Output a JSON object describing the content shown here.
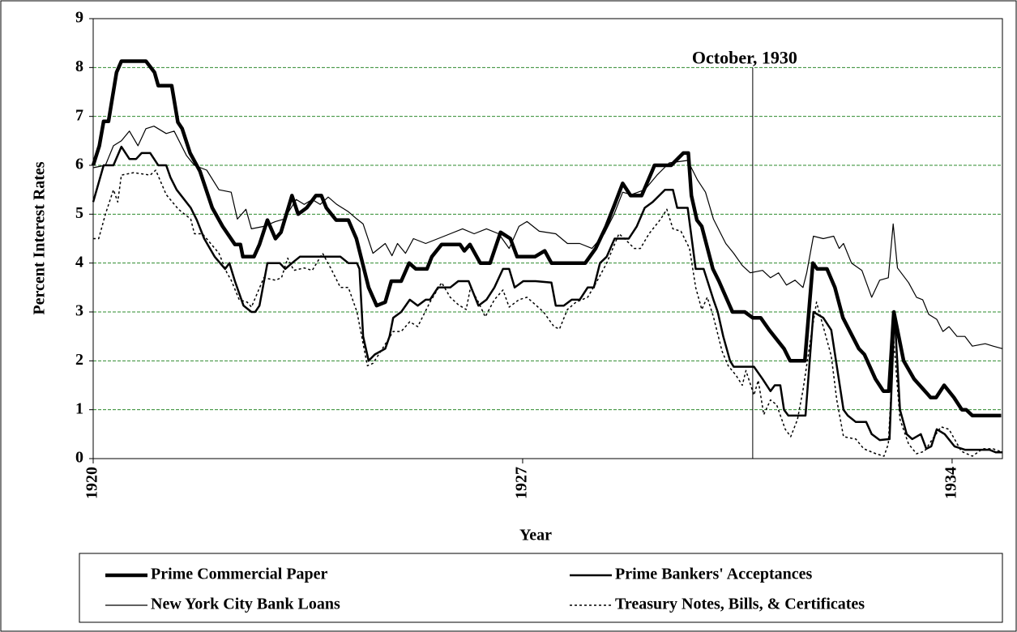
{
  "chart_data": {
    "type": "line",
    "xlabel": "Year",
    "ylabel": "Percent Interest Rates",
    "xlim": [
      1920,
      1934.82
    ],
    "xticks": [
      1920,
      1927,
      1934
    ],
    "ylim": [
      0,
      9
    ],
    "yticks": [
      0,
      1,
      2,
      3,
      4,
      5,
      6,
      7,
      8,
      9
    ],
    "grid": true,
    "grid_color": "#2e8b2e",
    "annotation": {
      "text": "October, 1930",
      "x": 1930.75,
      "y": 8
    },
    "series": [
      {
        "name": "Prime Commercial Paper",
        "color": "#000000",
        "line_width": 4.5,
        "dash": false,
        "x": [
          1920.0,
          1920.1,
          1920.17,
          1920.25,
          1920.38,
          1920.46,
          1920.86,
          1921.0,
          1921.06,
          1921.28,
          1921.38,
          1921.45,
          1921.58,
          1921.74,
          1921.94,
          1922.11,
          1922.31,
          1922.4,
          1922.44,
          1922.62,
          1922.71,
          1922.84,
          1922.97,
          1923.06,
          1923.24,
          1923.34,
          1923.48,
          1923.63,
          1923.72,
          1923.8,
          1923.96,
          1924.16,
          1924.29,
          1924.49,
          1924.62,
          1924.76,
          1924.86,
          1925.02,
          1925.15,
          1925.26,
          1925.44,
          1925.52,
          1925.68,
          1925.98,
          1926.05,
          1926.14,
          1926.31,
          1926.47,
          1926.64,
          1926.8,
          1926.91,
          1927.2,
          1927.36,
          1927.47,
          1928.02,
          1928.19,
          1928.36,
          1928.5,
          1928.63,
          1928.76,
          1928.94,
          1929.11,
          1929.15,
          1929.42,
          1929.62,
          1929.7,
          1929.75,
          1929.84,
          1929.92,
          1930.1,
          1930.2,
          1930.42,
          1930.62,
          1930.75,
          1930.88,
          1931.02,
          1931.26,
          1931.36,
          1931.6,
          1931.73,
          1931.8,
          1931.96,
          1932.09,
          1932.22,
          1932.48,
          1932.57,
          1932.75,
          1932.88,
          1932.97,
          1933.05,
          1933.21,
          1933.38,
          1933.65,
          1933.74,
          1933.87,
          1934.03,
          1934.16,
          1934.23,
          1934.33,
          1934.8
        ],
        "values": [
          6.0,
          6.4,
          6.9,
          6.9,
          7.9,
          8.13,
          8.13,
          7.9,
          7.63,
          7.63,
          6.88,
          6.75,
          6.25,
          5.88,
          5.13,
          4.75,
          4.38,
          4.38,
          4.13,
          4.13,
          4.38,
          4.88,
          4.5,
          4.63,
          5.38,
          5.0,
          5.13,
          5.38,
          5.38,
          5.13,
          4.88,
          4.88,
          4.5,
          3.5,
          3.13,
          3.2,
          3.63,
          3.63,
          4.0,
          3.88,
          3.88,
          4.13,
          4.38,
          4.38,
          4.25,
          4.38,
          4.0,
          4.0,
          4.63,
          4.5,
          4.13,
          4.13,
          4.25,
          4.0,
          4.0,
          4.3,
          4.75,
          5.2,
          5.63,
          5.38,
          5.38,
          5.88,
          6.0,
          6.0,
          6.25,
          6.25,
          5.38,
          4.88,
          4.75,
          3.88,
          3.63,
          3.0,
          3.0,
          2.88,
          2.88,
          2.63,
          2.25,
          2.0,
          2.0,
          4.0,
          3.88,
          3.88,
          3.5,
          2.88,
          2.25,
          2.13,
          1.63,
          1.38,
          1.38,
          3.0,
          2.0,
          1.63,
          1.25,
          1.25,
          1.5,
          1.25,
          1.0,
          1.0,
          0.88,
          0.88
        ]
      },
      {
        "name": "Prime Bankers' Acceptances",
        "color": "#000000",
        "line_width": 2.5,
        "dash": false,
        "x": [
          1920.0,
          1920.17,
          1920.33,
          1920.46,
          1920.59,
          1920.7,
          1920.79,
          1920.93,
          1921.06,
          1921.19,
          1921.26,
          1921.36,
          1921.59,
          1921.69,
          1921.81,
          1921.98,
          1922.15,
          1922.22,
          1922.31,
          1922.45,
          1922.58,
          1922.64,
          1922.71,
          1922.84,
          1923.04,
          1923.13,
          1923.24,
          1923.37,
          1924.03,
          1924.16,
          1924.3,
          1924.34,
          1924.4,
          1924.49,
          1924.59,
          1924.76,
          1924.83,
          1924.89,
          1925.02,
          1925.16,
          1925.29,
          1925.42,
          1925.49,
          1925.62,
          1925.82,
          1925.95,
          1926.12,
          1926.28,
          1926.41,
          1926.54,
          1926.68,
          1926.78,
          1926.87,
          1927.01,
          1927.21,
          1927.47,
          1927.54,
          1927.67,
          1927.8,
          1927.93,
          1928.06,
          1928.16,
          1928.26,
          1928.37,
          1928.5,
          1928.73,
          1928.86,
          1928.99,
          1929.12,
          1929.32,
          1929.45,
          1929.52,
          1929.69,
          1929.82,
          1929.95,
          1930.11,
          1930.18,
          1930.27,
          1930.38,
          1930.44,
          1930.77,
          1930.91,
          1931.04,
          1931.11,
          1931.2,
          1931.26,
          1931.33,
          1931.61,
          1931.74,
          1931.9,
          1932.03,
          1932.23,
          1932.3,
          1932.43,
          1932.6,
          1932.69,
          1932.82,
          1932.98,
          1933.06,
          1933.15,
          1933.26,
          1933.35,
          1933.49,
          1933.58,
          1933.66,
          1933.75,
          1933.88,
          1934.04,
          1934.21,
          1934.61,
          1934.71,
          1934.82
        ],
        "values": [
          5.25,
          6.0,
          6.0,
          6.38,
          6.13,
          6.13,
          6.25,
          6.25,
          6.0,
          6.0,
          5.75,
          5.5,
          5.13,
          4.88,
          4.5,
          4.13,
          3.88,
          4.0,
          3.63,
          3.13,
          3.0,
          3.0,
          3.13,
          4.0,
          4.0,
          3.88,
          4.0,
          4.13,
          4.13,
          4.0,
          4.0,
          3.88,
          2.5,
          2.0,
          2.13,
          2.25,
          2.5,
          2.88,
          3.0,
          3.25,
          3.13,
          3.25,
          3.25,
          3.5,
          3.5,
          3.63,
          3.63,
          3.13,
          3.25,
          3.5,
          3.88,
          3.88,
          3.5,
          3.63,
          3.63,
          3.6,
          3.13,
          3.13,
          3.25,
          3.25,
          3.5,
          3.5,
          4.0,
          4.13,
          4.5,
          4.5,
          4.75,
          5.13,
          5.25,
          5.5,
          5.5,
          5.13,
          5.13,
          3.88,
          3.88,
          3.25,
          3.0,
          2.5,
          2.0,
          1.88,
          1.88,
          1.63,
          1.38,
          1.5,
          1.5,
          1.0,
          0.88,
          0.88,
          3.0,
          2.88,
          2.63,
          1.0,
          0.88,
          0.75,
          0.75,
          0.5,
          0.38,
          0.4,
          3.0,
          1.0,
          0.5,
          0.4,
          0.5,
          0.2,
          0.25,
          0.6,
          0.5,
          0.25,
          0.18,
          0.18,
          0.13,
          0.13
        ]
      },
      {
        "name": "New York City Bank Loans",
        "color": "#000000",
        "line_width": 1.2,
        "dash": false,
        "x": [
          1920.0,
          1920.2,
          1920.33,
          1920.46,
          1920.59,
          1920.73,
          1920.86,
          1920.99,
          1921.19,
          1921.32,
          1921.52,
          1921.65,
          1921.85,
          1922.05,
          1922.25,
          1922.35,
          1922.49,
          1922.58,
          1922.78,
          1922.97,
          1923.11,
          1923.31,
          1923.44,
          1923.57,
          1923.7,
          1923.83,
          1923.97,
          1924.16,
          1924.3,
          1924.4,
          1924.56,
          1924.76,
          1924.87,
          1924.96,
          1925.09,
          1925.22,
          1925.42,
          1925.62,
          1925.82,
          1926.02,
          1926.21,
          1926.41,
          1926.61,
          1926.78,
          1926.94,
          1927.07,
          1927.27,
          1927.54,
          1927.73,
          1927.93,
          1928.13,
          1928.33,
          1928.49,
          1928.63,
          1928.77,
          1928.99,
          1929.19,
          1929.39,
          1929.69,
          1929.85,
          1929.98,
          1930.11,
          1930.31,
          1930.44,
          1930.58,
          1930.71,
          1930.91,
          1931.04,
          1931.17,
          1931.3,
          1931.44,
          1931.57,
          1931.63,
          1931.74,
          1931.9,
          1932.07,
          1932.16,
          1932.23,
          1932.36,
          1932.53,
          1932.69,
          1932.82,
          1932.96,
          1933.04,
          1933.11,
          1933.29,
          1933.42,
          1933.52,
          1933.62,
          1933.75,
          1933.85,
          1933.95,
          1934.08,
          1934.21,
          1934.33,
          1934.54,
          1934.67,
          1934.82
        ],
        "values": [
          5.95,
          6.0,
          6.4,
          6.5,
          6.7,
          6.4,
          6.75,
          6.8,
          6.65,
          6.7,
          6.2,
          6.0,
          5.9,
          5.5,
          5.45,
          4.9,
          5.1,
          4.7,
          4.75,
          4.85,
          4.9,
          5.3,
          5.2,
          5.3,
          5.2,
          5.35,
          5.2,
          5.05,
          4.9,
          4.8,
          4.2,
          4.4,
          4.15,
          4.4,
          4.2,
          4.5,
          4.4,
          4.5,
          4.6,
          4.7,
          4.6,
          4.7,
          4.6,
          4.3,
          4.75,
          4.85,
          4.65,
          4.6,
          4.4,
          4.4,
          4.3,
          4.6,
          5.0,
          5.45,
          5.4,
          5.5,
          5.8,
          6.05,
          6.1,
          5.7,
          5.45,
          4.9,
          4.4,
          4.2,
          3.95,
          3.8,
          3.85,
          3.7,
          3.8,
          3.55,
          3.65,
          3.5,
          3.8,
          4.55,
          4.5,
          4.55,
          4.3,
          4.4,
          4.0,
          3.85,
          3.3,
          3.65,
          3.7,
          4.8,
          3.9,
          3.6,
          3.3,
          3.25,
          2.95,
          2.85,
          2.6,
          2.7,
          2.5,
          2.5,
          2.3,
          2.35,
          2.3,
          2.25
        ]
      },
      {
        "name": "Treasury Notes, Bills, & Certificates",
        "color": "#000000",
        "line_width": 1.5,
        "dash": true,
        "x": [
          1920.0,
          1920.09,
          1920.2,
          1920.33,
          1920.4,
          1920.46,
          1920.66,
          1920.93,
          1921.02,
          1921.19,
          1921.39,
          1921.59,
          1921.65,
          1921.78,
          1922.05,
          1922.18,
          1922.25,
          1922.38,
          1922.51,
          1922.58,
          1922.78,
          1922.97,
          1923.07,
          1923.17,
          1923.27,
          1923.44,
          1923.57,
          1923.74,
          1923.87,
          1924.03,
          1924.16,
          1924.3,
          1924.47,
          1924.56,
          1924.69,
          1924.89,
          1925.02,
          1925.16,
          1925.29,
          1925.49,
          1925.68,
          1925.82,
          1925.95,
          1926.08,
          1926.15,
          1926.28,
          1926.39,
          1926.54,
          1926.68,
          1926.78,
          1926.94,
          1927.07,
          1927.34,
          1927.51,
          1927.6,
          1927.73,
          1927.87,
          1928.06,
          1928.2,
          1928.37,
          1928.57,
          1928.66,
          1928.82,
          1928.92,
          1929.06,
          1929.25,
          1929.35,
          1929.45,
          1929.58,
          1929.72,
          1929.82,
          1929.92,
          1930.01,
          1930.11,
          1930.25,
          1930.35,
          1930.48,
          1930.58,
          1930.64,
          1930.77,
          1930.84,
          1930.93,
          1931.04,
          1931.14,
          1931.28,
          1931.37,
          1931.48,
          1931.57,
          1931.7,
          1931.79,
          1931.9,
          1932.03,
          1932.12,
          1932.23,
          1932.43,
          1932.56,
          1932.76,
          1932.89,
          1932.96,
          1933.05,
          1933.15,
          1933.29,
          1933.42,
          1933.55,
          1933.68,
          1933.82,
          1933.95,
          1934.15,
          1934.33,
          1934.5,
          1934.67,
          1934.82
        ],
        "values": [
          4.5,
          4.5,
          5.0,
          5.5,
          5.25,
          5.8,
          5.85,
          5.8,
          5.9,
          5.4,
          5.1,
          4.9,
          4.6,
          4.6,
          4.2,
          3.8,
          3.65,
          3.25,
          3.2,
          3.1,
          3.7,
          3.65,
          3.7,
          4.1,
          3.85,
          3.9,
          3.85,
          4.2,
          3.9,
          3.5,
          3.5,
          3.0,
          1.9,
          1.95,
          2.2,
          2.6,
          2.6,
          2.8,
          2.7,
          3.2,
          3.6,
          3.3,
          3.15,
          3.05,
          3.5,
          3.2,
          2.9,
          3.25,
          3.45,
          3.1,
          3.25,
          3.3,
          3.0,
          2.7,
          2.65,
          3.05,
          3.2,
          3.3,
          3.6,
          4.0,
          4.6,
          4.5,
          4.3,
          4.3,
          4.6,
          4.9,
          5.1,
          4.7,
          4.65,
          4.3,
          3.5,
          3.05,
          3.3,
          2.9,
          2.2,
          1.9,
          1.7,
          1.5,
          1.8,
          1.3,
          1.6,
          0.9,
          1.2,
          1.1,
          0.6,
          0.45,
          0.8,
          1.4,
          2.5,
          3.2,
          2.7,
          2.1,
          1.2,
          0.45,
          0.4,
          0.2,
          0.1,
          0.05,
          0.3,
          2.4,
          0.8,
          0.3,
          0.1,
          0.15,
          0.4,
          0.65,
          0.6,
          0.15,
          0.05,
          0.2,
          0.2,
          0.13
        ]
      }
    ]
  }
}
